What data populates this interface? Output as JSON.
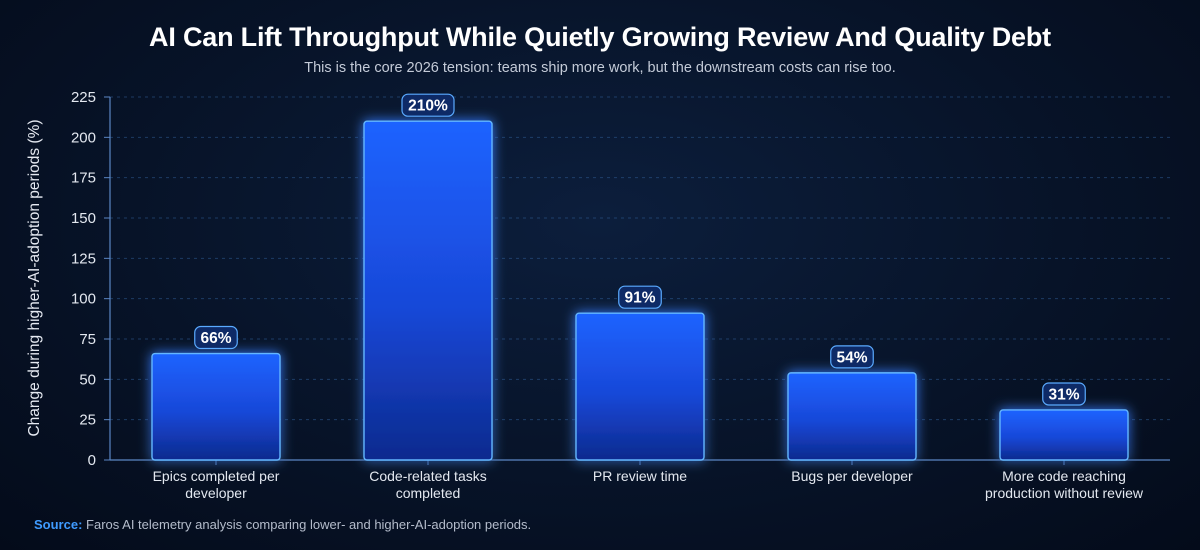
{
  "chart_data": {
    "type": "bar",
    "title": "AI Can Lift Throughput While Quietly Growing Review And Quality Debt",
    "subtitle": "This is the core 2026 tension: teams ship more work, but the downstream costs can rise too.",
    "ylabel": "Change during higher-AI-adoption periods (%)",
    "xlabel": "",
    "ylim": [
      0,
      225
    ],
    "yticks": [
      0,
      25,
      50,
      75,
      100,
      125,
      150,
      175,
      200,
      225
    ],
    "categories": [
      [
        "Epics completed per",
        "developer"
      ],
      [
        "Code-related tasks",
        "completed"
      ],
      [
        "PR review time"
      ],
      [
        "Bugs per developer"
      ],
      [
        "More code reaching",
        "production without review"
      ]
    ],
    "values": [
      66,
      210,
      91,
      54,
      31
    ],
    "data_labels": [
      "66%",
      "210%",
      "91%",
      "54%",
      "31%"
    ],
    "grid": true,
    "bar_color": "#1a5cff",
    "accent_color": "#3f9bff"
  },
  "source": {
    "label": "Source:",
    "text": "Faros AI telemetry analysis comparing lower- and higher-AI-adoption periods."
  }
}
